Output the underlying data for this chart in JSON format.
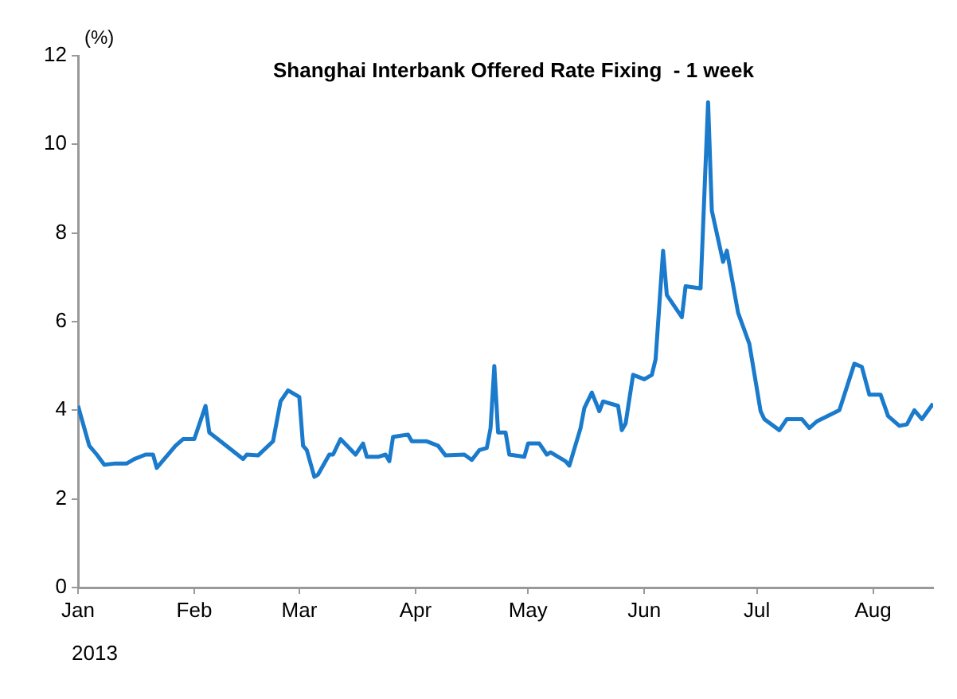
{
  "chart_data": {
    "type": "line",
    "title": "Shanghai Interbank Offered Rate Fixing  - 1 week",
    "ylabel": "(%)",
    "xlabel": "2013",
    "x": [
      "2013-01-01",
      "2013-01-02",
      "2013-01-04",
      "2013-01-06",
      "2013-01-08",
      "2013-01-11",
      "2013-01-14",
      "2013-01-16",
      "2013-01-19",
      "2013-01-21",
      "2013-01-22",
      "2013-01-27",
      "2013-01-29",
      "2013-02-01",
      "2013-02-04",
      "2013-02-05",
      "2013-02-08",
      "2013-02-14",
      "2013-02-15",
      "2013-02-18",
      "2013-02-22",
      "2013-02-24",
      "2013-02-26",
      "2013-03-01",
      "2013-03-02",
      "2013-03-03",
      "2013-03-05",
      "2013-03-06",
      "2013-03-09",
      "2013-03-10",
      "2013-03-12",
      "2013-03-16",
      "2013-03-18",
      "2013-03-19",
      "2013-03-22",
      "2013-03-24",
      "2013-03-25",
      "2013-03-26",
      "2013-03-30",
      "2013-03-31",
      "2013-04-04",
      "2013-04-07",
      "2013-04-09",
      "2013-04-14",
      "2013-04-16",
      "2013-04-18",
      "2013-04-20",
      "2013-04-21",
      "2013-04-22",
      "2013-04-23",
      "2013-04-25",
      "2013-04-26",
      "2013-04-30",
      "2013-05-01",
      "2013-05-04",
      "2013-05-06",
      "2013-05-07",
      "2013-05-11",
      "2013-05-12",
      "2013-05-15",
      "2013-05-16",
      "2013-05-18",
      "2013-05-20",
      "2013-05-21",
      "2013-05-25",
      "2013-05-26",
      "2013-05-27",
      "2013-05-29",
      "2013-06-01",
      "2013-06-03",
      "2013-06-04",
      "2013-06-06",
      "2013-06-07",
      "2013-06-11",
      "2013-06-12",
      "2013-06-16",
      "2013-06-18",
      "2013-06-19",
      "2013-06-22",
      "2013-06-23",
      "2013-06-26",
      "2013-06-29",
      "2013-07-02",
      "2013-07-03",
      "2013-07-07",
      "2013-07-09",
      "2013-07-13",
      "2013-07-15",
      "2013-07-17",
      "2013-07-23",
      "2013-07-27",
      "2013-07-29",
      "2013-07-31",
      "2013-08-03",
      "2013-08-05",
      "2013-08-08",
      "2013-08-10",
      "2013-08-12",
      "2013-08-14",
      "2013-08-17"
    ],
    "series": [
      {
        "color": "#1a7acc",
        "values": [
          4.1,
          3.8,
          3.2,
          3.0,
          2.77,
          2.8,
          2.8,
          2.9,
          3.0,
          3.0,
          2.7,
          3.2,
          3.35,
          3.35,
          4.1,
          3.5,
          3.3,
          2.9,
          3.0,
          2.98,
          3.3,
          4.2,
          4.45,
          4.3,
          3.2,
          3.1,
          2.5,
          2.55,
          3.0,
          3.0,
          3.35,
          3.0,
          3.25,
          2.95,
          2.95,
          3.0,
          2.85,
          3.4,
          3.45,
          3.3,
          3.3,
          3.2,
          2.98,
          3.0,
          2.88,
          3.1,
          3.15,
          3.6,
          5.0,
          3.5,
          3.5,
          3.0,
          2.95,
          3.25,
          3.25,
          3.0,
          3.05,
          2.85,
          2.75,
          3.6,
          4.05,
          4.4,
          3.98,
          4.2,
          4.1,
          3.55,
          3.7,
          4.8,
          4.7,
          4.8,
          5.15,
          7.6,
          6.6,
          6.1,
          6.8,
          6.75,
          10.95,
          8.5,
          7.35,
          7.6,
          6.2,
          5.5,
          3.98,
          3.8,
          3.55,
          3.8,
          3.8,
          3.6,
          3.75,
          4.0,
          5.05,
          4.98,
          4.35,
          4.35,
          3.87,
          3.65,
          3.68,
          4.0,
          3.8,
          4.15
        ]
      }
    ],
    "xlim": [
      "2013-01-01",
      "2013-08-17"
    ],
    "xticks": [
      {
        "value": "2013-01-01",
        "label": "Jan"
      },
      {
        "value": "2013-02-01",
        "label": "Feb"
      },
      {
        "value": "2013-03-01",
        "label": "Mar"
      },
      {
        "value": "2013-04-01",
        "label": "Apr"
      },
      {
        "value": "2013-05-01",
        "label": "May"
      },
      {
        "value": "2013-06-01",
        "label": "Jun"
      },
      {
        "value": "2013-07-01",
        "label": "Jul"
      },
      {
        "value": "2013-08-01",
        "label": "Aug"
      }
    ],
    "ylim": [
      0,
      12
    ],
    "yticks": [
      0,
      2,
      4,
      6,
      8,
      10,
      12
    ],
    "grid": false,
    "legend": false,
    "marker": "none",
    "line_style": "solid"
  }
}
